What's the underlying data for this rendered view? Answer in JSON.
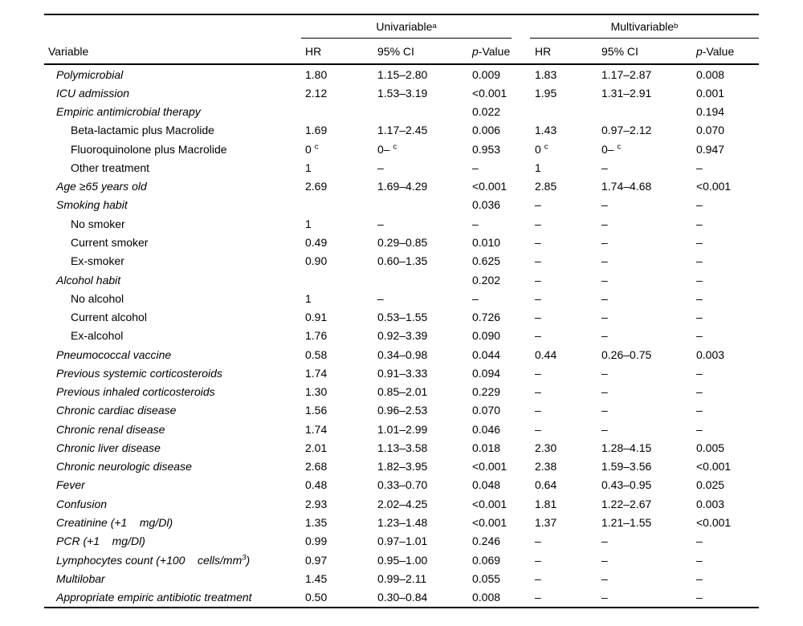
{
  "colors": {
    "text": "#000000",
    "background": "#ffffff",
    "rule": "#000000"
  },
  "table": {
    "group_headers": {
      "univariable": {
        "label": "Univariable",
        "superscript": "a"
      },
      "multivariable": {
        "label": "Multivariable",
        "superscript": "b"
      }
    },
    "column_headers": {
      "variable": "Variable",
      "hr": "HR",
      "ci": "95% CI",
      "p_italic": "p",
      "p_rest": "-Value"
    },
    "rows": [
      {
        "label": "Polymicrobial",
        "italic": true,
        "indent": false,
        "cells": [
          "1.80",
          "1.15–2.80",
          "0.009",
          "1.83",
          "1.17–2.87",
          "0.008"
        ]
      },
      {
        "label": "ICU admission",
        "italic": true,
        "indent": false,
        "cells": [
          "2.12",
          "1.53–3.19",
          "<0.001",
          "1.95",
          "1.31–2.91",
          "0.001"
        ]
      },
      {
        "label": "Empiric antimicrobial therapy",
        "italic": true,
        "indent": false,
        "cells": [
          "",
          "",
          "0.022",
          "",
          "",
          "0.194"
        ]
      },
      {
        "label": "Beta-lactamic plus Macrolide",
        "italic": false,
        "indent": true,
        "cells": [
          "1.69",
          "1.17–2.45",
          "0.006",
          "1.43",
          "0.97–2.12",
          "0.070"
        ]
      },
      {
        "label": "Fluoroquinolone plus Macrolide",
        "italic": false,
        "indent": true,
        "cells": [
          "0 ^{c}",
          "0– ^{c}",
          "0.953",
          "0 ^{c}",
          "0– ^{c}",
          "0.947"
        ]
      },
      {
        "label": "Other treatment",
        "italic": false,
        "indent": true,
        "cells": [
          "1",
          "–",
          "–",
          "1",
          "–",
          "–"
        ]
      },
      {
        "label": "Age ≥65 years old",
        "italic": true,
        "indent": false,
        "cells": [
          "2.69",
          "1.69–4.29",
          "<0.001",
          "2.85",
          "1.74–4.68",
          "<0.001"
        ]
      },
      {
        "label": "Smoking habit",
        "italic": true,
        "indent": false,
        "cells": [
          "",
          "",
          "0.036",
          "–",
          "–",
          "–"
        ]
      },
      {
        "label": "No smoker",
        "italic": false,
        "indent": true,
        "cells": [
          "1",
          "–",
          "–",
          "–",
          "–",
          "–"
        ]
      },
      {
        "label": "Current smoker",
        "italic": false,
        "indent": true,
        "cells": [
          "0.49",
          "0.29–0.85",
          "0.010",
          "–",
          "–",
          "–"
        ]
      },
      {
        "label": "Ex-smoker",
        "italic": false,
        "indent": true,
        "cells": [
          "0.90",
          "0.60–1.35",
          "0.625",
          "–",
          "–",
          "–"
        ]
      },
      {
        "label": "Alcohol habit",
        "italic": true,
        "indent": false,
        "cells": [
          "",
          "",
          "0.202",
          "–",
          "–",
          "–"
        ]
      },
      {
        "label": "No alcohol",
        "italic": false,
        "indent": true,
        "cells": [
          "1",
          "–",
          "–",
          "–",
          "–",
          "–"
        ]
      },
      {
        "label": "Current alcohol",
        "italic": false,
        "indent": true,
        "cells": [
          "0.91",
          "0.53–1.55",
          "0.726",
          "–",
          "–",
          "–"
        ]
      },
      {
        "label": "Ex-alcohol",
        "italic": false,
        "indent": true,
        "cells": [
          "1.76",
          "0.92–3.39",
          "0.090",
          "–",
          "–",
          "–"
        ]
      },
      {
        "label": "Pneumococcal vaccine",
        "italic": true,
        "indent": false,
        "cells": [
          "0.58",
          "0.34–0.98",
          "0.044",
          "0.44",
          "0.26–0.75",
          "0.003"
        ]
      },
      {
        "label": "Previous systemic corticosteroids",
        "italic": true,
        "indent": false,
        "cells": [
          "1.74",
          "0.91–3.33",
          "0.094",
          "–",
          "–",
          "–"
        ]
      },
      {
        "label": "Previous inhaled corticosteroids",
        "italic": true,
        "indent": false,
        "cells": [
          "1.30",
          "0.85–2.01",
          "0.229",
          "–",
          "–",
          "–"
        ]
      },
      {
        "label": "Chronic cardiac disease",
        "italic": true,
        "indent": false,
        "cells": [
          "1.56",
          "0.96–2.53",
          "0.070",
          "–",
          "–",
          "–"
        ]
      },
      {
        "label": "Chronic renal disease",
        "italic": true,
        "indent": false,
        "cells": [
          "1.74",
          "1.01–2.99",
          "0.046",
          "–",
          "–",
          "–"
        ]
      },
      {
        "label": "Chronic liver disease",
        "italic": true,
        "indent": false,
        "cells": [
          "2.01",
          "1.13–3.58",
          "0.018",
          "2.30",
          "1.28–4.15",
          "0.005"
        ]
      },
      {
        "label": "Chronic neurologic disease",
        "italic": true,
        "indent": false,
        "cells": [
          "2.68",
          "1.82–3.95",
          "<0.001",
          "2.38",
          "1.59–3.56",
          "<0.001"
        ]
      },
      {
        "label": "Fever",
        "italic": true,
        "indent": false,
        "cells": [
          "0.48",
          "0.33–0.70",
          "0.048",
          "0.64",
          "0.43–0.95",
          "0.025"
        ]
      },
      {
        "label": "Confusion",
        "italic": true,
        "indent": false,
        "cells": [
          "2.93",
          "2.02–4.25",
          "<0.001",
          "1.81",
          "1.22–2.67",
          "0.003"
        ]
      },
      {
        "label": "Creatinine (+1    mg/Dl)",
        "italic": true,
        "indent": false,
        "cells": [
          "1.35",
          "1.23–1.48",
          "<0.001",
          "1.37",
          "1.21–1.55",
          "<0.001"
        ]
      },
      {
        "label": "PCR (+1    mg/Dl)",
        "italic": true,
        "indent": false,
        "cells": [
          "0.99",
          "0.97–1.01",
          "0.246",
          "–",
          "–",
          "–"
        ]
      },
      {
        "label": "Lymphocytes count (+100    cells/mm^{3})",
        "italic": true,
        "indent": false,
        "cells": [
          "0.97",
          "0.95–1.00",
          "0.069",
          "–",
          "–",
          "–"
        ]
      },
      {
        "label": "Multilobar",
        "italic": true,
        "indent": false,
        "cells": [
          "1.45",
          "0.99–2.11",
          "0.055",
          "–",
          "–",
          "–"
        ]
      },
      {
        "label": "Appropriate empiric antibiotic treatment",
        "italic": true,
        "indent": false,
        "cells": [
          "0.50",
          "0.30–0.84",
          "0.008",
          "–",
          "–",
          "–"
        ]
      }
    ]
  }
}
